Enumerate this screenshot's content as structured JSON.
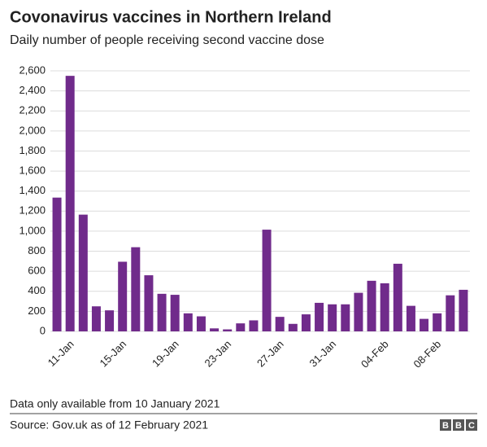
{
  "chart_data": {
    "type": "bar",
    "title": "Covonavirus vaccines in Northern Ireland",
    "subtitle": "Daily number of people receiving second vaccine dose",
    "categories": [
      null,
      "11-Jan",
      null,
      null,
      null,
      "15-Jan",
      null,
      null,
      null,
      "19-Jan",
      null,
      null,
      null,
      "23-Jan",
      null,
      null,
      null,
      "27-Jan",
      null,
      null,
      null,
      "31-Jan",
      null,
      null,
      null,
      "04-Feb",
      null,
      null,
      null,
      "08-Feb",
      null,
      null
    ],
    "values": [
      1335,
      2550,
      1165,
      250,
      210,
      695,
      840,
      560,
      375,
      365,
      180,
      150,
      30,
      20,
      80,
      110,
      1015,
      145,
      75,
      170,
      285,
      270,
      270,
      385,
      505,
      480,
      675,
      255,
      125,
      180,
      360,
      415
    ],
    "color": "#702b8b",
    "ylim": [
      0,
      2600
    ],
    "yticks": [
      0,
      200,
      400,
      600,
      800,
      {
        "value": 1000,
        "label": "1,000"
      },
      {
        "value": 1200,
        "label": "1,200"
      },
      {
        "value": 1400,
        "label": "1,400"
      },
      {
        "value": 1600,
        "label": "1,600"
      },
      {
        "value": 1800,
        "label": "1,800"
      },
      {
        "value": 2000,
        "label": "2,000"
      },
      {
        "value": 2200,
        "label": "2,200"
      },
      {
        "value": 2400,
        "label": "2,400"
      },
      {
        "value": 2600,
        "label": "2,600"
      }
    ],
    "grid": true,
    "note": "Data only available from 10 January 2021",
    "source": "Source: Gov.uk as of 12 February 2021",
    "logo": [
      "B",
      "B",
      "C"
    ]
  }
}
